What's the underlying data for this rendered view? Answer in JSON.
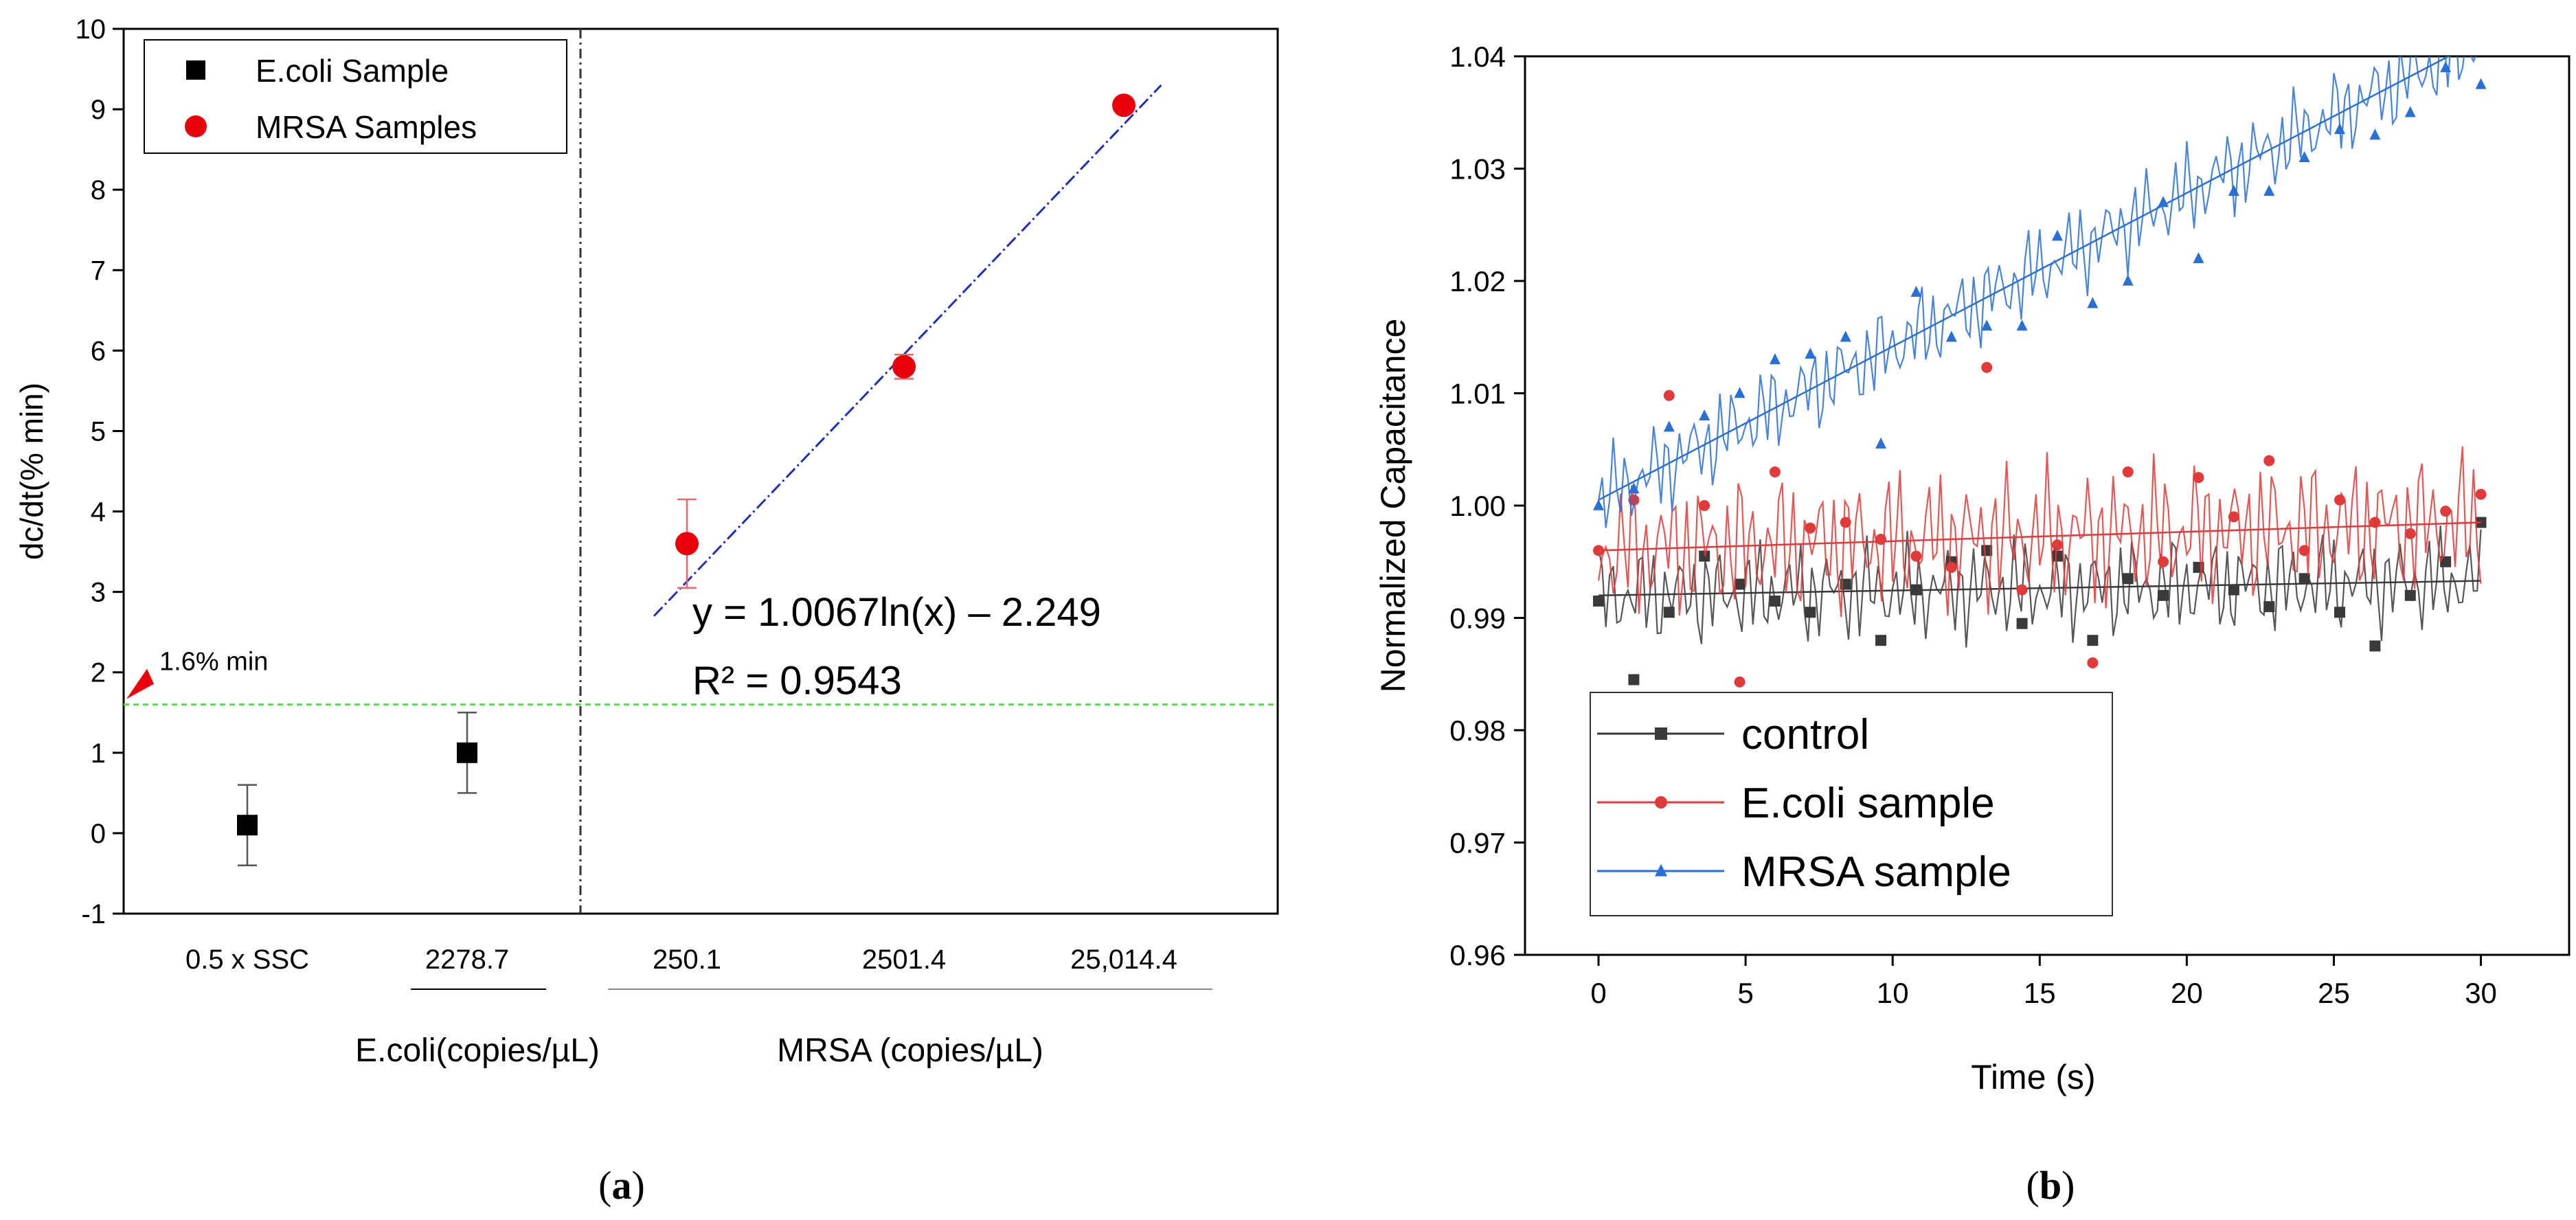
{
  "chart_data": [
    {
      "panel_label": "(a)",
      "type": "scatter",
      "ylabel": "dc/dt(% min)",
      "ylim": [
        -1,
        10
      ],
      "yticks": [
        -1,
        0,
        1,
        2,
        3,
        4,
        5,
        6,
        7,
        8,
        9,
        10
      ],
      "categories": [
        "0.5 x SSC",
        "2278.7",
        "250.1",
        "2501.4",
        "25,014.4"
      ],
      "group_labels": [
        "E.coli(copies/µL)",
        "MRSA (copies/µL)"
      ],
      "legend": {
        "position": "top-left",
        "entries": [
          "E.coli Sample",
          "MRSA Samples"
        ]
      },
      "series": [
        {
          "name": "E.coli Sample",
          "color": "#000000",
          "marker": "square",
          "category_index": [
            0,
            1
          ],
          "values": [
            0.1,
            1.0
          ],
          "errors": [
            0.5,
            0.5
          ]
        },
        {
          "name": "MRSA Samples",
          "color": "#e8000b",
          "marker": "circle",
          "category_index": [
            2,
            3,
            4
          ],
          "values": [
            3.6,
            5.8,
            9.05
          ],
          "errors": [
            0.55,
            0.15,
            0.05
          ]
        }
      ],
      "fit": {
        "color": "#1f2fb8",
        "equation": "y = 1.0067ln(x) – 2.249",
        "r2": "R² = 0.9543",
        "x_cat_start": 1.85,
        "x_cat_end": 4.17,
        "y_start": 2.7,
        "y_end": 9.3
      },
      "threshold": {
        "value": 1.6,
        "label": "1.6% min",
        "color": "#55dd55"
      },
      "separator_after_category": 1.5
    },
    {
      "panel_label": "(b)",
      "type": "line",
      "xlabel": "Time (s)",
      "ylabel": "Normalized Capacitance",
      "xlim": [
        -2.5,
        33
      ],
      "ylim": [
        0.96,
        1.04
      ],
      "xticks": [
        0,
        5,
        10,
        15,
        20,
        25,
        30
      ],
      "yticks": [
        0.96,
        0.97,
        0.98,
        0.99,
        1.0,
        1.01,
        1.02,
        1.03,
        1.04
      ],
      "ytick_labels": [
        "0.96",
        "0.97",
        "0.98",
        "0.99",
        "1.00",
        "1.01",
        "1.02",
        "1.03",
        "1.04"
      ],
      "legend": {
        "position": "bottom-left",
        "entries": [
          "control",
          "E.coli sample",
          "MRSA sample"
        ]
      },
      "series": [
        {
          "name": "control",
          "color": "#3a3a3a",
          "marker": "square",
          "trend": [
            0.992,
            0.9933
          ],
          "noise": 0.005,
          "x": [
            0,
            1.2,
            2.4,
            3.6,
            4.8,
            6.0,
            7.2,
            8.4,
            9.6,
            10.8,
            12.0,
            13.2,
            14.4,
            15.6,
            16.8,
            18.0,
            19.2,
            20.4,
            21.6,
            22.8,
            24.0,
            25.2,
            26.4,
            27.6,
            28.8,
            30.0
          ],
          "y": [
            0.9915,
            0.9845,
            0.9905,
            0.9955,
            0.993,
            0.9915,
            0.9905,
            0.993,
            0.988,
            0.9925,
            0.995,
            0.996,
            0.9895,
            0.9955,
            0.988,
            0.9935,
            0.992,
            0.9945,
            0.9925,
            0.991,
            0.9935,
            0.9905,
            0.9875,
            0.992,
            0.995,
            0.9985
          ]
        },
        {
          "name": "E.coli sample",
          "color": "#e03a3a",
          "marker": "circle",
          "trend": [
            0.996,
            0.9985
          ],
          "noise": 0.007,
          "x": [
            0,
            1.2,
            2.4,
            3.6,
            4.8,
            6.0,
            7.2,
            8.4,
            9.6,
            10.8,
            12.0,
            13.2,
            14.4,
            15.6,
            16.8,
            18.0,
            19.2,
            20.4,
            21.6,
            22.8,
            24.0,
            25.2,
            26.4,
            27.6,
            28.8,
            30.0
          ],
          "y": [
            0.996,
            1.0005,
            1.0098,
            1.0,
            0.9843,
            1.003,
            0.998,
            0.9985,
            0.997,
            0.9955,
            0.9945,
            1.0123,
            0.9925,
            0.9965,
            0.986,
            1.003,
            0.995,
            1.0025,
            0.999,
            1.004,
            0.996,
            1.0005,
            0.9985,
            0.9975,
            0.9995,
            1.001
          ]
        },
        {
          "name": "MRSA sample",
          "color": "#2a6fd4",
          "marker": "triangle",
          "trend": [
            1.0005,
            1.0415
          ],
          "noise": 0.0045,
          "x": [
            0,
            1.2,
            2.4,
            3.6,
            4.8,
            6.0,
            7.2,
            8.4,
            9.6,
            10.8,
            12.0,
            13.2,
            14.4,
            15.6,
            16.8,
            18.0,
            19.2,
            20.4,
            21.6,
            22.8,
            24.0,
            25.2,
            26.4,
            27.6,
            28.8,
            30.0
          ],
          "y": [
            1.0,
            1.0015,
            1.007,
            1.008,
            1.01,
            1.013,
            1.0135,
            1.015,
            1.0055,
            1.019,
            1.015,
            1.016,
            1.016,
            1.024,
            1.018,
            1.02,
            1.027,
            1.022,
            1.028,
            1.028,
            1.031,
            1.0335,
            1.033,
            1.035,
            1.039,
            1.0375
          ]
        }
      ]
    }
  ]
}
